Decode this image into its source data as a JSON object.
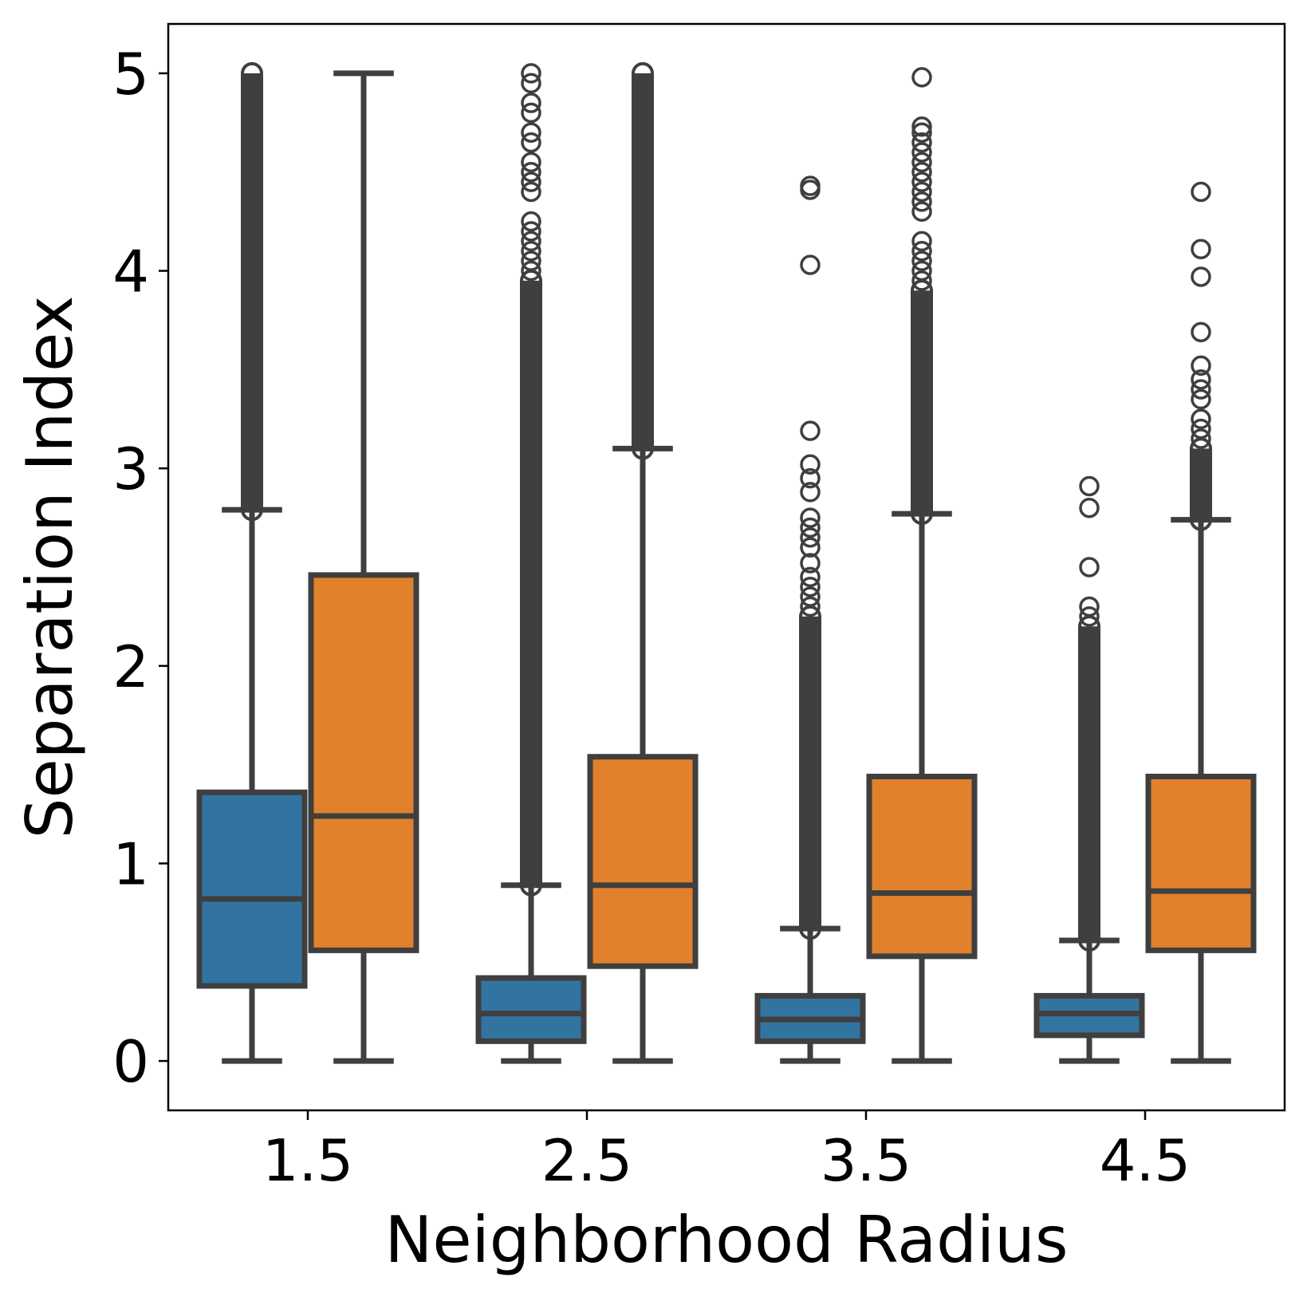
{
  "chart_data": {
    "type": "box",
    "xlabel": "Neighborhood Radius",
    "ylabel": "Separation Index",
    "categories": [
      "1.5",
      "2.5",
      "3.5",
      "4.5"
    ],
    "yticks": [
      "0",
      "1",
      "2",
      "3",
      "4",
      "5"
    ],
    "ylim": [
      -0.25,
      5.25
    ],
    "grid": false,
    "legend": "none",
    "series": [
      {
        "color": "#3274a1",
        "boxes": [
          {
            "whisker_low": 0.0,
            "q1": 0.38,
            "median": 0.82,
            "q3": 1.36,
            "whisker_high": 2.79,
            "outliers_dense": [
              2.79,
              5.0
            ]
          },
          {
            "whisker_low": 0.0,
            "q1": 0.1,
            "median": 0.24,
            "q3": 0.42,
            "whisker_high": 0.89,
            "outliers_dense": [
              0.89,
              3.95
            ],
            "outliers": [
              4.0,
              4.05,
              4.1,
              4.15,
              4.2,
              4.25,
              4.4,
              4.45,
              4.5,
              4.55,
              4.65,
              4.7,
              4.8,
              4.85,
              4.95,
              5.0
            ]
          },
          {
            "whisker_low": 0.0,
            "q1": 0.1,
            "median": 0.21,
            "q3": 0.33,
            "whisker_high": 0.67,
            "outliers_dense": [
              0.67,
              2.25
            ],
            "outliers": [
              2.3,
              2.35,
              2.4,
              2.45,
              2.52,
              2.6,
              2.65,
              2.7,
              2.75,
              2.88,
              2.95,
              3.02,
              3.19,
              4.03,
              4.41,
              4.43
            ]
          },
          {
            "whisker_low": 0.0,
            "q1": 0.13,
            "median": 0.24,
            "q3": 0.33,
            "whisker_high": 0.61,
            "outliers_dense": [
              0.61,
              2.2
            ],
            "outliers": [
              2.25,
              2.3,
              2.5,
              2.8,
              2.91
            ]
          }
        ]
      },
      {
        "color": "#e1812c",
        "boxes": [
          {
            "whisker_low": 0.0,
            "q1": 0.56,
            "median": 1.24,
            "q3": 2.46,
            "whisker_high": 5.0
          },
          {
            "whisker_low": 0.0,
            "q1": 0.48,
            "median": 0.89,
            "q3": 1.54,
            "whisker_high": 3.1,
            "outliers_dense": [
              3.1,
              5.0
            ]
          },
          {
            "whisker_low": 0.0,
            "q1": 0.53,
            "median": 0.85,
            "q3": 1.44,
            "whisker_high": 2.77,
            "outliers_dense": [
              2.77,
              3.9
            ],
            "outliers": [
              3.95,
              4.0,
              4.05,
              4.1,
              4.15,
              4.3,
              4.35,
              4.4,
              4.45,
              4.5,
              4.55,
              4.6,
              4.65,
              4.7,
              4.73,
              4.98
            ]
          },
          {
            "whisker_low": 0.0,
            "q1": 0.56,
            "median": 0.86,
            "q3": 1.44,
            "whisker_high": 2.74,
            "outliers_dense": [
              2.74,
              3.1
            ],
            "outliers": [
              3.15,
              3.2,
              3.25,
              3.35,
              3.4,
              3.45,
              3.52,
              3.69,
              3.97,
              4.11,
              4.4
            ]
          }
        ]
      }
    ]
  }
}
